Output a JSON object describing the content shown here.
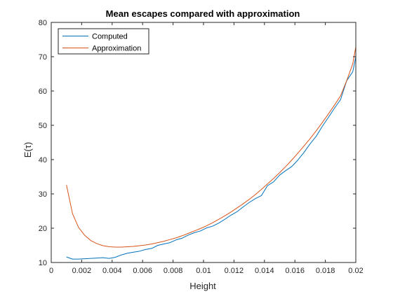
{
  "chart_data": {
    "type": "line",
    "title": "Mean escapes compared with approximation",
    "xlabel": "Height",
    "ylabel": "E(τ)",
    "xlim": [
      0,
      0.02
    ],
    "ylim": [
      10,
      80
    ],
    "xticks": [
      0,
      0.002,
      0.004,
      0.006,
      0.008,
      0.01,
      0.012,
      0.014,
      0.016,
      0.018,
      0.02
    ],
    "xtick_labels": [
      "0",
      "0.002",
      "0.004",
      "0.006",
      "0.008",
      "0.01",
      "0.012",
      "0.014",
      "0.016",
      "0.018",
      "0.02"
    ],
    "yticks": [
      10,
      20,
      30,
      40,
      50,
      60,
      70,
      80
    ],
    "ytick_labels": [
      "10",
      "20",
      "30",
      "40",
      "50",
      "60",
      "70",
      "80"
    ],
    "grid": false,
    "legend_position": "top-left",
    "series": [
      {
        "name": "Computed",
        "color": "#0072BD",
        "x": [
          0.001,
          0.0014,
          0.0018,
          0.0022,
          0.0026,
          0.003,
          0.0034,
          0.0038,
          0.0042,
          0.0046,
          0.005,
          0.0054,
          0.0058,
          0.0062,
          0.0066,
          0.007,
          0.0074,
          0.0078,
          0.0082,
          0.0086,
          0.009,
          0.0094,
          0.0098,
          0.0102,
          0.0106,
          0.011,
          0.0114,
          0.0118,
          0.0122,
          0.0126,
          0.013,
          0.0134,
          0.0138,
          0.0142,
          0.0146,
          0.015,
          0.0154,
          0.0158,
          0.0162,
          0.0166,
          0.017,
          0.0174,
          0.0178,
          0.0182,
          0.0186,
          0.019,
          0.0194,
          0.0198,
          0.02
        ],
        "y": [
          11.6,
          11.0,
          11.0,
          11.1,
          11.2,
          11.3,
          11.4,
          11.2,
          11.5,
          12.2,
          12.7,
          13.0,
          13.3,
          13.8,
          14.1,
          15.0,
          15.4,
          15.8,
          16.6,
          17.1,
          18.0,
          18.7,
          19.2,
          20.1,
          20.6,
          21.5,
          22.6,
          23.8,
          24.8,
          26.2,
          27.5,
          28.6,
          29.5,
          32.4,
          33.5,
          35.5,
          36.8,
          38.0,
          39.9,
          42.1,
          44.6,
          46.8,
          49.7,
          52.3,
          55.0,
          57.5,
          63.0,
          65.6,
          70.0
        ]
      },
      {
        "name": "Approximation",
        "color": "#D95319",
        "x": [
          0.001,
          0.0014,
          0.0018,
          0.0022,
          0.0026,
          0.003,
          0.0034,
          0.0038,
          0.0042,
          0.0046,
          0.005,
          0.0054,
          0.0058,
          0.0062,
          0.0066,
          0.007,
          0.0074,
          0.0078,
          0.0082,
          0.0086,
          0.009,
          0.0094,
          0.0098,
          0.0102,
          0.0106,
          0.011,
          0.0114,
          0.0118,
          0.0122,
          0.0126,
          0.013,
          0.0134,
          0.0138,
          0.0142,
          0.0146,
          0.015,
          0.0154,
          0.0158,
          0.0162,
          0.0166,
          0.017,
          0.0174,
          0.0178,
          0.0182,
          0.0186,
          0.019,
          0.0194,
          0.0198,
          0.02
        ],
        "y": [
          32.6,
          24.2,
          20.2,
          17.9,
          16.4,
          15.5,
          14.9,
          14.6,
          14.5,
          14.5,
          14.6,
          14.7,
          14.9,
          15.1,
          15.4,
          15.8,
          16.2,
          16.7,
          17.2,
          17.8,
          18.5,
          19.2,
          19.9,
          20.7,
          21.6,
          22.6,
          23.6,
          24.7,
          25.9,
          27.1,
          28.4,
          29.8,
          31.3,
          32.9,
          34.5,
          36.2,
          38.0,
          39.9,
          41.9,
          44.0,
          46.1,
          48.4,
          50.8,
          53.3,
          55.9,
          58.6,
          63.0,
          67.9,
          72.9
        ]
      }
    ]
  }
}
